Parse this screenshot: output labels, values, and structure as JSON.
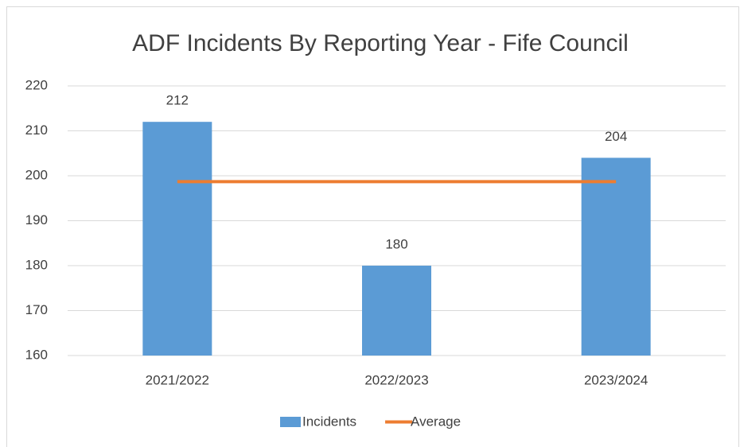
{
  "chart_data": {
    "type": "bar",
    "title": "ADF Incidents By Reporting Year - Fife Council",
    "categories": [
      "2021/2022",
      "2022/2023",
      "2023/2024"
    ],
    "series": [
      {
        "name": "Incidents",
        "color": "#5b9bd5",
        "values": [
          212,
          180,
          204
        ],
        "data_labels": true
      },
      {
        "name": "Average",
        "color": "#ed7d31",
        "type": "line",
        "values": [
          198.7,
          198.7,
          198.7
        ]
      }
    ],
    "ylim": [
      160,
      220
    ],
    "yticks": [
      160,
      170,
      180,
      190,
      200,
      210,
      220
    ],
    "grid": true,
    "legend": "bottom"
  }
}
